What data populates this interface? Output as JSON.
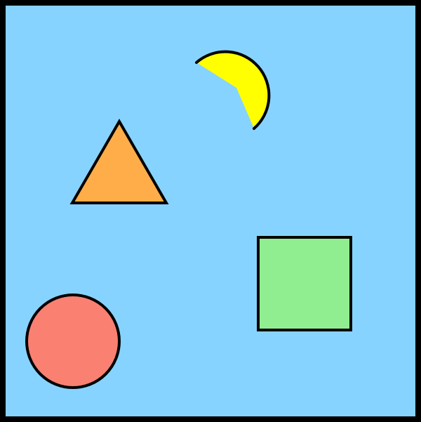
{
  "scene": {
    "background_color": "#87d3ff",
    "border_color": "#000000",
    "shapes": [
      {
        "kind": "three-quarter-circle",
        "color": "#ffff00"
      },
      {
        "kind": "triangle",
        "color": "#ffad48"
      },
      {
        "kind": "square",
        "color": "#90ee90"
      },
      {
        "kind": "circle",
        "color": "#fa8072"
      }
    ]
  }
}
